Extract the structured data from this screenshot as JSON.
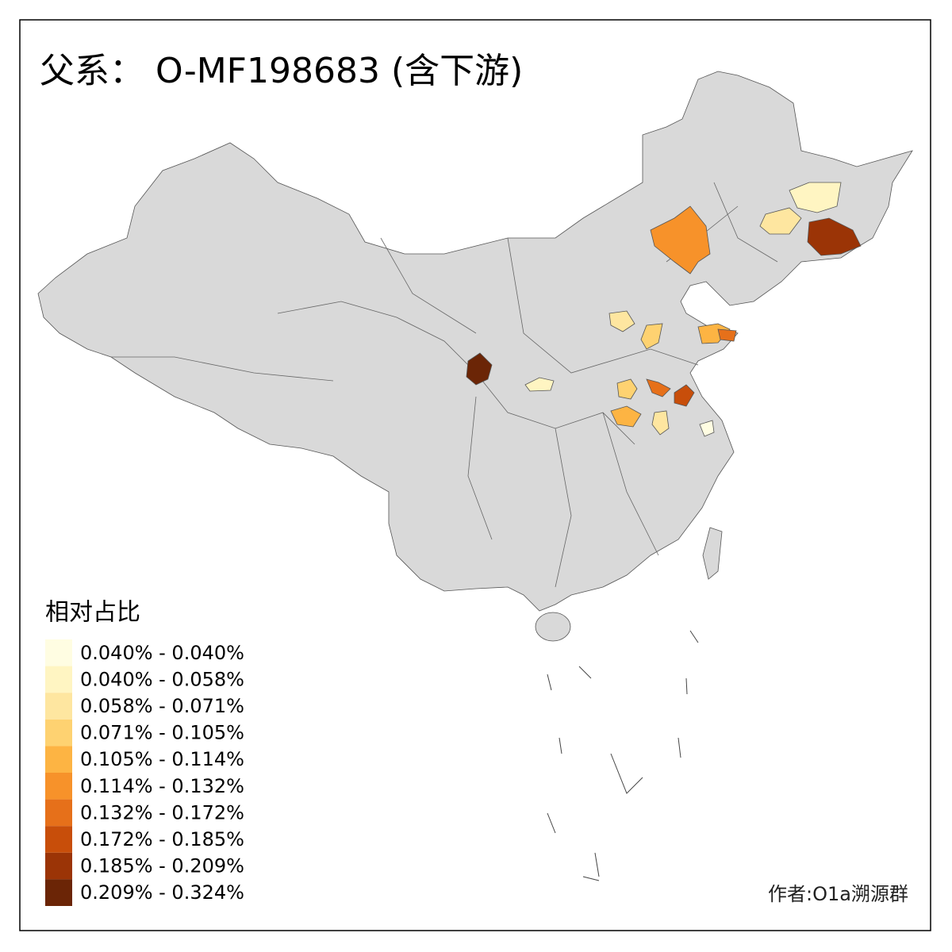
{
  "title": "父系： O-MF198683 (含下游)",
  "legend": {
    "title": "相对占比",
    "items": [
      {
        "label": "0.040% - 0.040%",
        "color": "#fffde2"
      },
      {
        "label": "0.040% - 0.058%",
        "color": "#fff5c2"
      },
      {
        "label": "0.058% - 0.071%",
        "color": "#fee6a0"
      },
      {
        "label": "0.071% - 0.105%",
        "color": "#fed271"
      },
      {
        "label": "0.105% - 0.114%",
        "color": "#fdb443"
      },
      {
        "label": "0.114% - 0.132%",
        "color": "#f7922a"
      },
      {
        "label": "0.132% - 0.172%",
        "color": "#e6701a"
      },
      {
        "label": "0.172% - 0.185%",
        "color": "#c84e0a"
      },
      {
        "label": "0.185% - 0.209%",
        "color": "#9b3406"
      },
      {
        "label": "0.209% - 0.324%",
        "color": "#6b2506"
      }
    ]
  },
  "credit": "作者:O1a溯源群"
}
